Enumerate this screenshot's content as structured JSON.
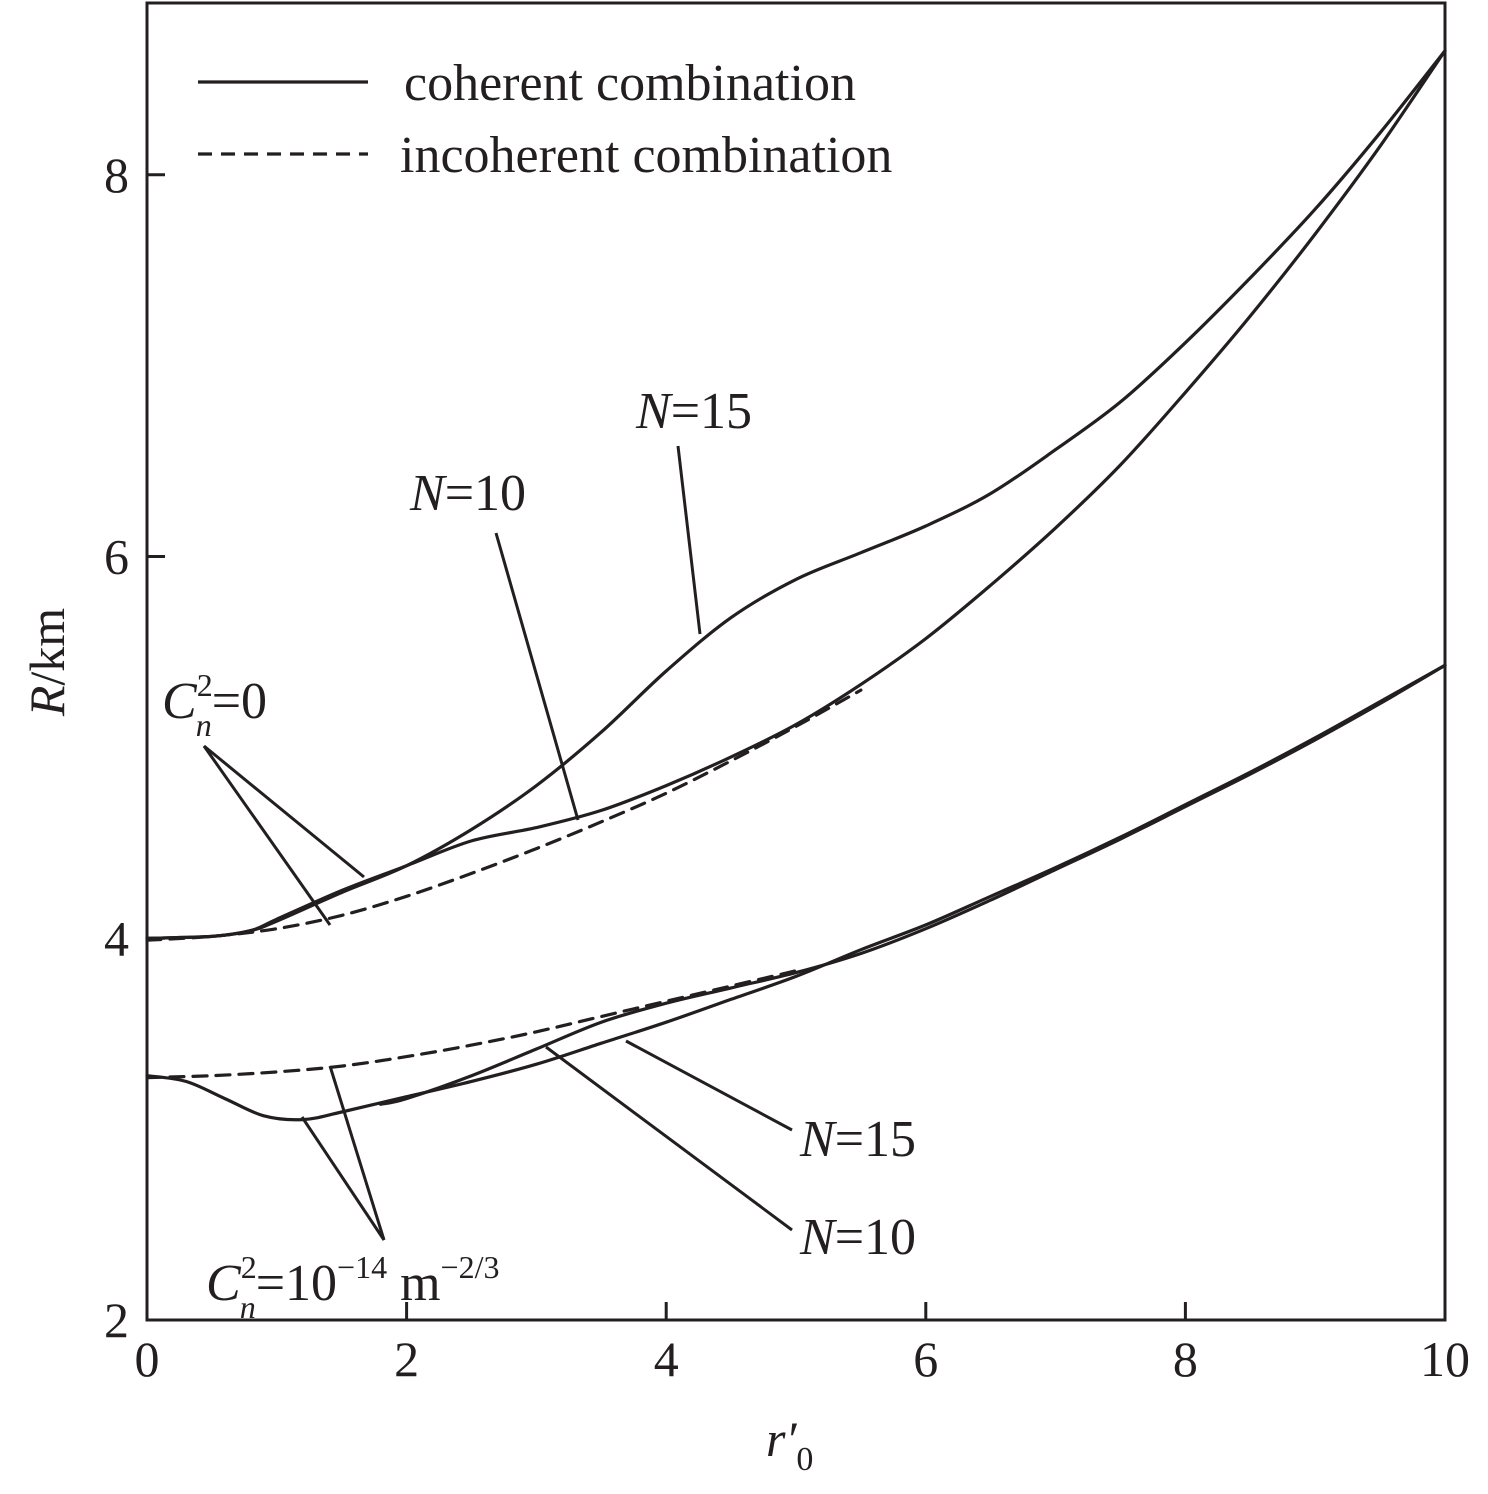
{
  "chart_data": {
    "type": "line",
    "title": "",
    "xlabel_main": "r′",
    "xlabel_sub": "0",
    "ylabel": "R/km",
    "xlim": [
      0,
      10
    ],
    "ylim": [
      2,
      8.9
    ],
    "xticks": [
      0,
      2,
      4,
      6,
      8,
      10
    ],
    "yticks": [
      2,
      4,
      6,
      8
    ],
    "grid": false,
    "legend_position": "top-left",
    "legend": [
      {
        "label": "coherent combination",
        "style": "solid"
      },
      {
        "label": "incoherent combination",
        "style": "dashed"
      }
    ],
    "series": [
      {
        "group": "C_n^2 = 0",
        "style": "solid",
        "ann": "N=15",
        "x": [
          0,
          0.5,
          0.8,
          1.0,
          1.5,
          2.0,
          2.5,
          3.0,
          3.5,
          4.0,
          4.5,
          5.0,
          5.5,
          6.0,
          6.5,
          7.0,
          7.5,
          8.0,
          8.5,
          9.0,
          9.5,
          10.0
        ],
        "y": [
          4.0,
          4.01,
          4.04,
          4.09,
          4.24,
          4.38,
          4.57,
          4.8,
          5.08,
          5.4,
          5.68,
          5.88,
          6.02,
          6.16,
          6.33,
          6.56,
          6.81,
          7.12,
          7.46,
          7.82,
          8.22,
          8.65
        ]
      },
      {
        "group": "C_n^2 = 0",
        "style": "solid",
        "ann": "N=10",
        "x": [
          0,
          0.5,
          0.8,
          1.0,
          1.5,
          2.0,
          2.5,
          3.0,
          3.5,
          4.0,
          4.5,
          5.0,
          5.5,
          6.0,
          6.5,
          7.0,
          7.5,
          8.0,
          8.5,
          9.0,
          9.5,
          10.0
        ],
        "y": [
          4.0,
          4.01,
          4.04,
          4.1,
          4.25,
          4.38,
          4.51,
          4.58,
          4.67,
          4.8,
          4.95,
          5.12,
          5.33,
          5.57,
          5.85,
          6.15,
          6.48,
          6.86,
          7.26,
          7.69,
          8.15,
          8.65
        ]
      },
      {
        "group": "C_n^2 = 0",
        "style": "dashed",
        "ann": "",
        "x": [
          0,
          0.5,
          1.0,
          1.5,
          2.0,
          2.5,
          3.0,
          3.5,
          4.0,
          4.5,
          5.0,
          5.5
        ],
        "y": [
          3.99,
          4.01,
          4.05,
          4.12,
          4.22,
          4.34,
          4.47,
          4.61,
          4.76,
          4.93,
          5.11,
          5.3
        ]
      },
      {
        "group": "C_n^2 = 10^-14 m^-2/3",
        "style": "solid",
        "ann": "N=15",
        "x": [
          0,
          0.3,
          0.6,
          0.9,
          1.2,
          1.5,
          2.0,
          2.5,
          3.0,
          3.5,
          4.0,
          4.5,
          5.0,
          5.5,
          6.0,
          6.5,
          7.0,
          7.5,
          8.0,
          8.5,
          9.0,
          9.5,
          10.0
        ],
        "y": [
          3.28,
          3.25,
          3.16,
          3.07,
          3.05,
          3.09,
          3.17,
          3.25,
          3.34,
          3.45,
          3.56,
          3.68,
          3.8,
          3.94,
          4.07,
          4.22,
          4.37,
          4.53,
          4.7,
          4.87,
          5.05,
          5.24,
          5.43
        ]
      },
      {
        "group": "C_n^2 = 10^-14 m^-2/3",
        "style": "solid",
        "ann": "N=10",
        "x": [
          1.8,
          2.0,
          2.5,
          3.0,
          3.5,
          4.0,
          4.5,
          5.0,
          5.5,
          6.0,
          6.5,
          7.0,
          7.5,
          8.0,
          8.5,
          9.0,
          9.5,
          10.0
        ],
        "y": [
          3.13,
          3.16,
          3.28,
          3.42,
          3.56,
          3.66,
          3.74,
          3.82,
          3.92,
          4.05,
          4.2,
          4.36,
          4.52,
          4.69,
          4.86,
          5.04,
          5.23,
          5.43
        ]
      },
      {
        "group": "C_n^2 = 10^-14 m^-2/3",
        "style": "dashed",
        "ann": "",
        "x": [
          0,
          0.5,
          1.0,
          1.5,
          2.0,
          2.5,
          3.0,
          3.5,
          4.0,
          4.5,
          5.0
        ],
        "y": [
          3.27,
          3.28,
          3.3,
          3.33,
          3.38,
          3.44,
          3.51,
          3.59,
          3.67,
          3.75,
          3.83
        ]
      }
    ],
    "annotations": {
      "cn0_main": "C",
      "cn0_sup": "2",
      "cn0_sub": "n",
      "cn0_tail": "=0",
      "cn14_main": "C",
      "cn14_sup": "2",
      "cn14_sub": "n",
      "cn14_mid": "=10",
      "cn14_exp": "−14",
      "cn14_unit": " m",
      "cn14_unit_exp": "−2/3",
      "n15_upper_n": "N",
      "n15_upper_val": "=15",
      "n10_upper_n": "N",
      "n10_upper_val": "=10",
      "n15_lower_n": "N",
      "n15_lower_val": "=15",
      "n10_lower_n": "N",
      "n10_lower_val": "=10"
    }
  }
}
